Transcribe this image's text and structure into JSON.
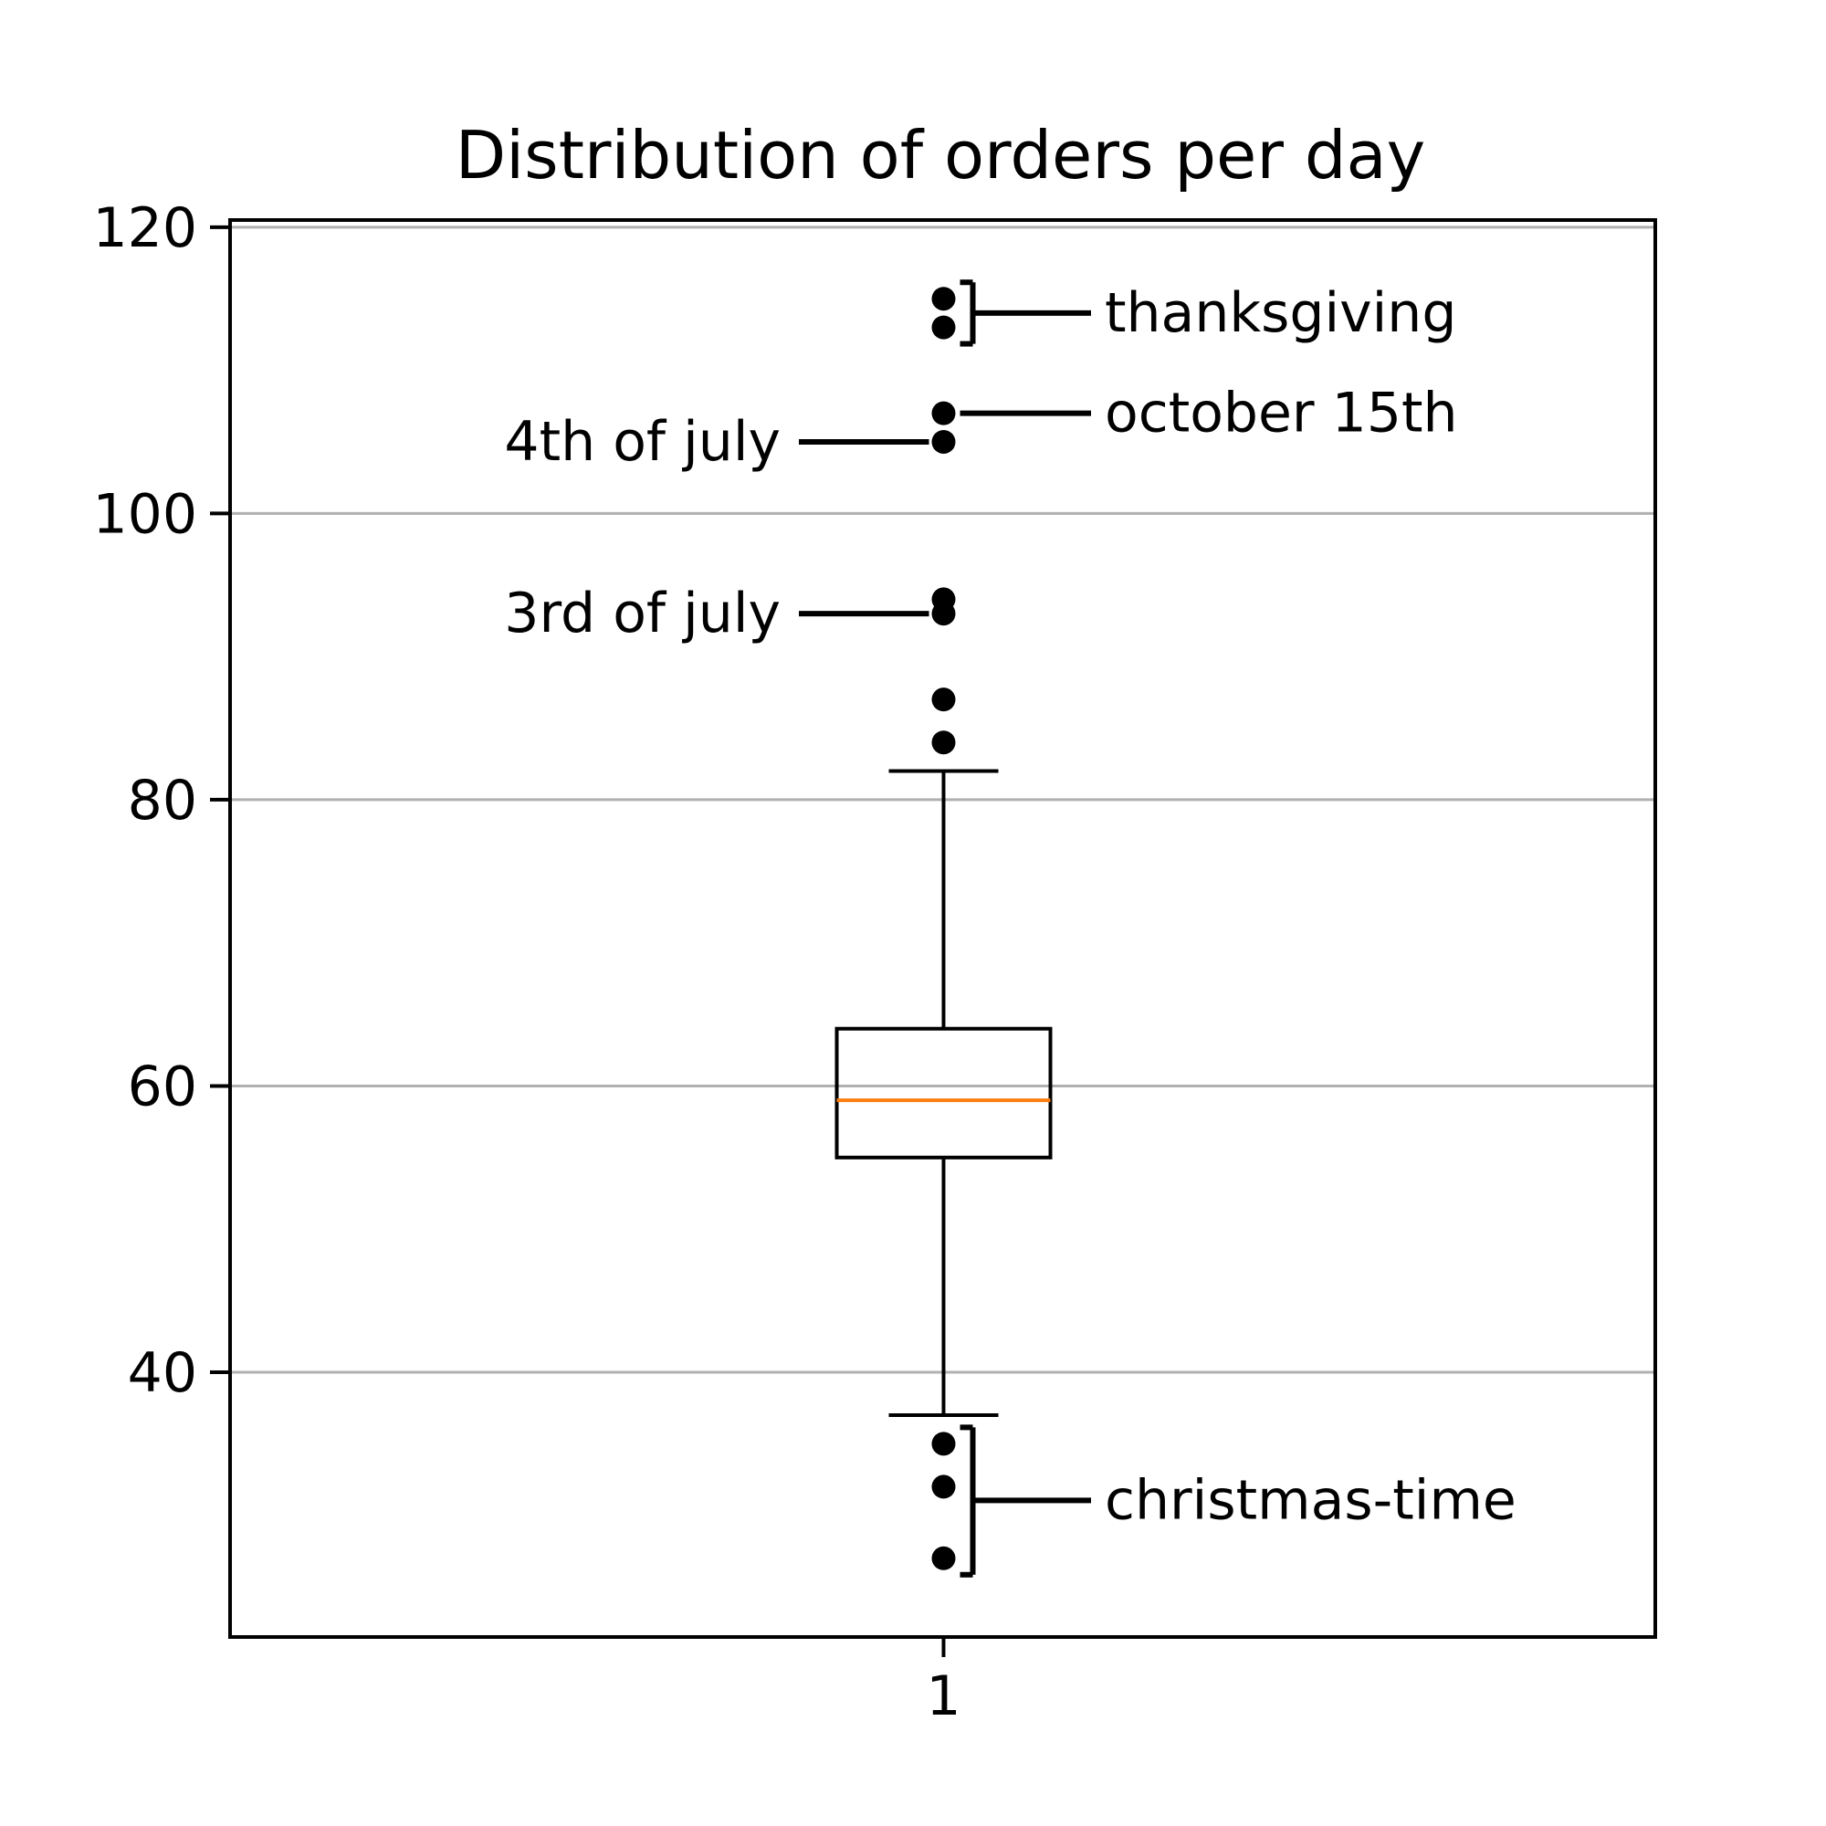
{
  "chart_data": {
    "type": "box",
    "title": "Distribution of orders per day",
    "xlabel": "",
    "ylabel": "",
    "categories": [
      "1"
    ],
    "ylim": [
      21.5,
      120.5
    ],
    "yticks": [
      40,
      60,
      80,
      100,
      120
    ],
    "grid": "horizontal",
    "box": {
      "q1": 55,
      "median": 59,
      "q3": 64,
      "whisker_low": 37,
      "whisker_high": 82
    },
    "outliers": [
      115,
      113,
      107,
      105,
      94,
      93,
      87,
      84,
      35,
      32,
      27
    ],
    "annotations": [
      {
        "text": "thanksgiving",
        "values": [
          113,
          115
        ],
        "side": "right"
      },
      {
        "text": "october 15th",
        "values": [
          107
        ],
        "side": "right"
      },
      {
        "text": "4th of july",
        "values": [
          105
        ],
        "side": "left"
      },
      {
        "text": "3rd of july",
        "values": [
          93,
          94
        ],
        "side": "left"
      },
      {
        "text": "christmas-time",
        "values": [
          27,
          32,
          35
        ],
        "side": "right"
      }
    ],
    "colors": {
      "box": "#000000",
      "median": "#ff7f0e",
      "grid": "#b0b0b0",
      "outlier": "#000000"
    }
  }
}
